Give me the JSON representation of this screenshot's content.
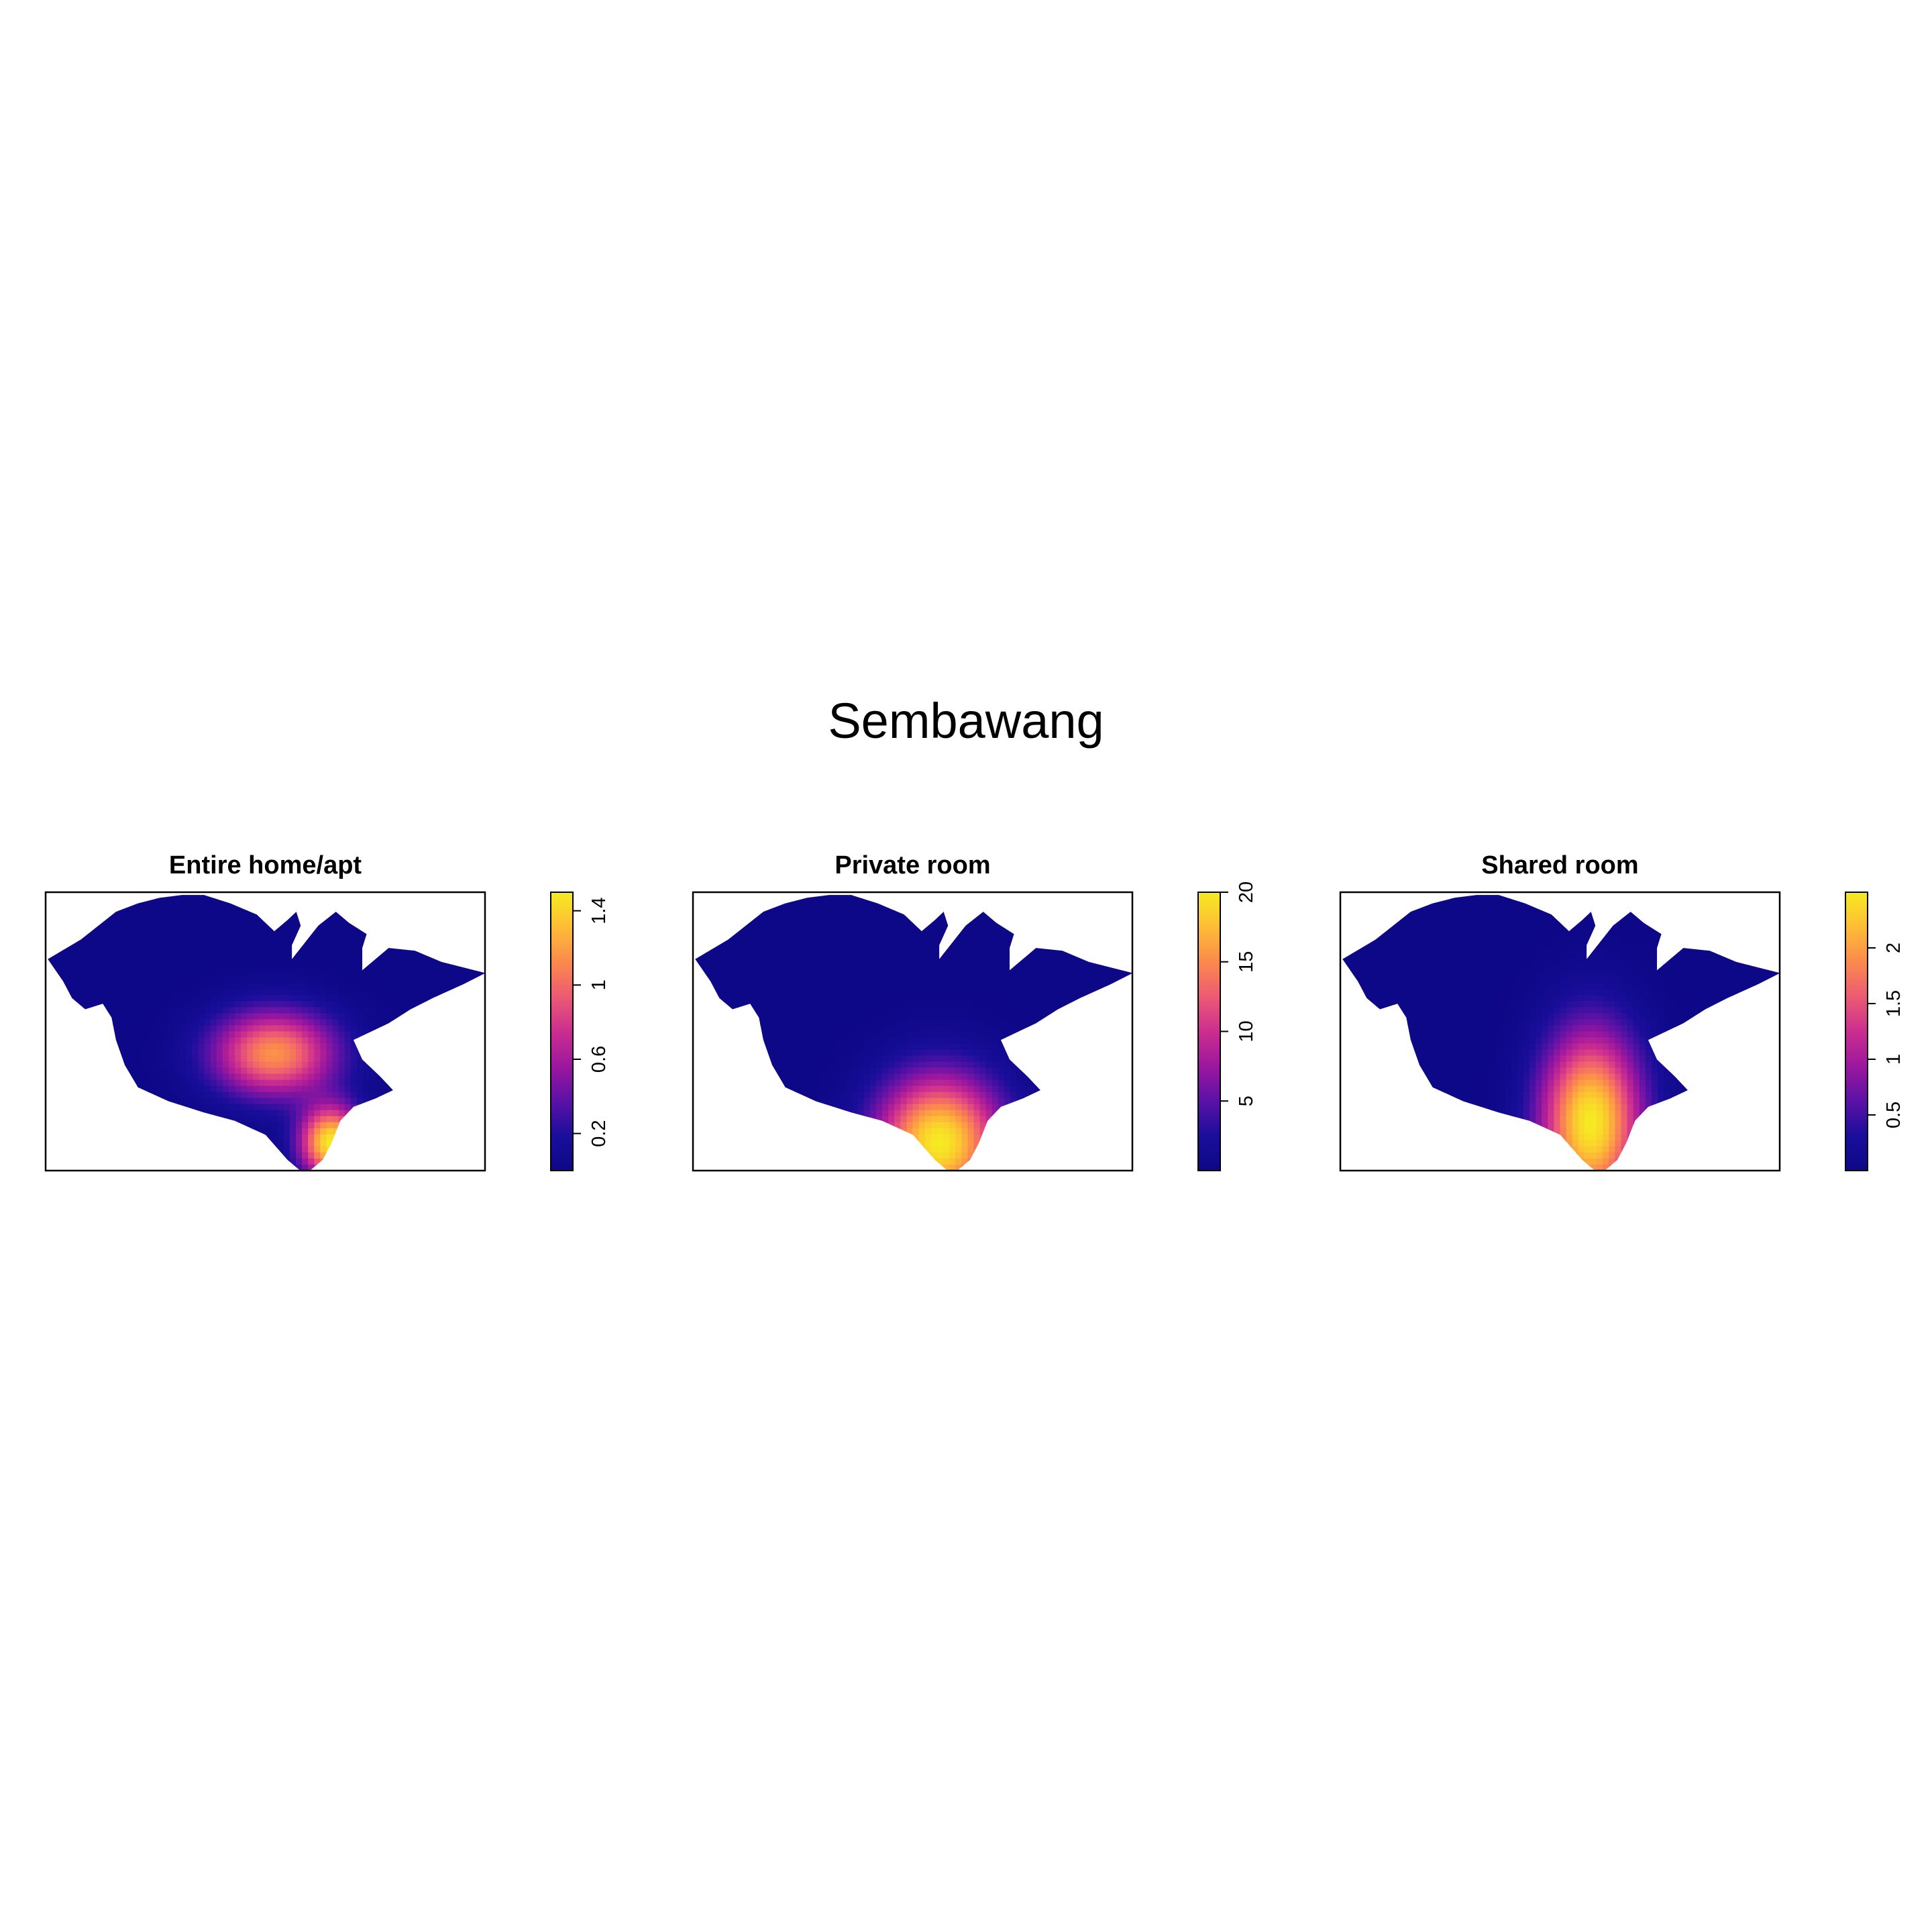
{
  "figure": {
    "title": "Sembawang"
  },
  "colors": {
    "palette": [
      "#0D0887",
      "#1A0E9B",
      "#5A12A6",
      "#9C179E",
      "#CC2E8F",
      "#ED5A73",
      "#FB8A4D",
      "#FDBD35",
      "#F6EA22"
    ],
    "frame": "#000000",
    "background": "#FFFFFF"
  },
  "chart_data": [
    {
      "type": "heatmap",
      "title": "Entire home/apt",
      "xlabel": "",
      "ylabel": "",
      "grid": false,
      "legend": "right",
      "colorbar": {
        "min": 0,
        "max": 1.5,
        "ticks": [
          0.2,
          0.6,
          1,
          1.4
        ],
        "tick_labels": [
          "0.2",
          "0.6",
          "1",
          "1.4"
        ]
      },
      "peak_value": 1.5,
      "hotspots_normalized": [
        {
          "x": 0.52,
          "y": 0.58,
          "sx": 0.1,
          "sy": 0.11,
          "value": 1.15
        },
        {
          "x": 0.65,
          "y": 0.9,
          "sx": 0.05,
          "sy": 0.09,
          "value": 1.5
        }
      ]
    },
    {
      "type": "heatmap",
      "title": "Private room",
      "xlabel": "",
      "ylabel": "",
      "grid": false,
      "legend": "right",
      "colorbar": {
        "min": 0,
        "max": 20,
        "ticks": [
          5,
          10,
          15,
          20
        ],
        "tick_labels": [
          "5",
          "10",
          "15",
          "20"
        ]
      },
      "peak_value": 20,
      "hotspots_normalized": [
        {
          "x": 0.56,
          "y": 0.9,
          "sx": 0.1,
          "sy": 0.17,
          "value": 20
        }
      ]
    },
    {
      "type": "heatmap",
      "title": "Shared room",
      "xlabel": "",
      "ylabel": "",
      "grid": false,
      "legend": "right",
      "colorbar": {
        "min": 0,
        "max": 2.5,
        "ticks": [
          0.5,
          1,
          1.5,
          2
        ],
        "tick_labels": [
          "0.5",
          "1",
          "1.5",
          "2"
        ]
      },
      "peak_value": 2.5,
      "hotspots_normalized": [
        {
          "x": 0.57,
          "y": 0.83,
          "sx": 0.08,
          "sy": 0.23,
          "value": 2.5
        }
      ]
    }
  ]
}
